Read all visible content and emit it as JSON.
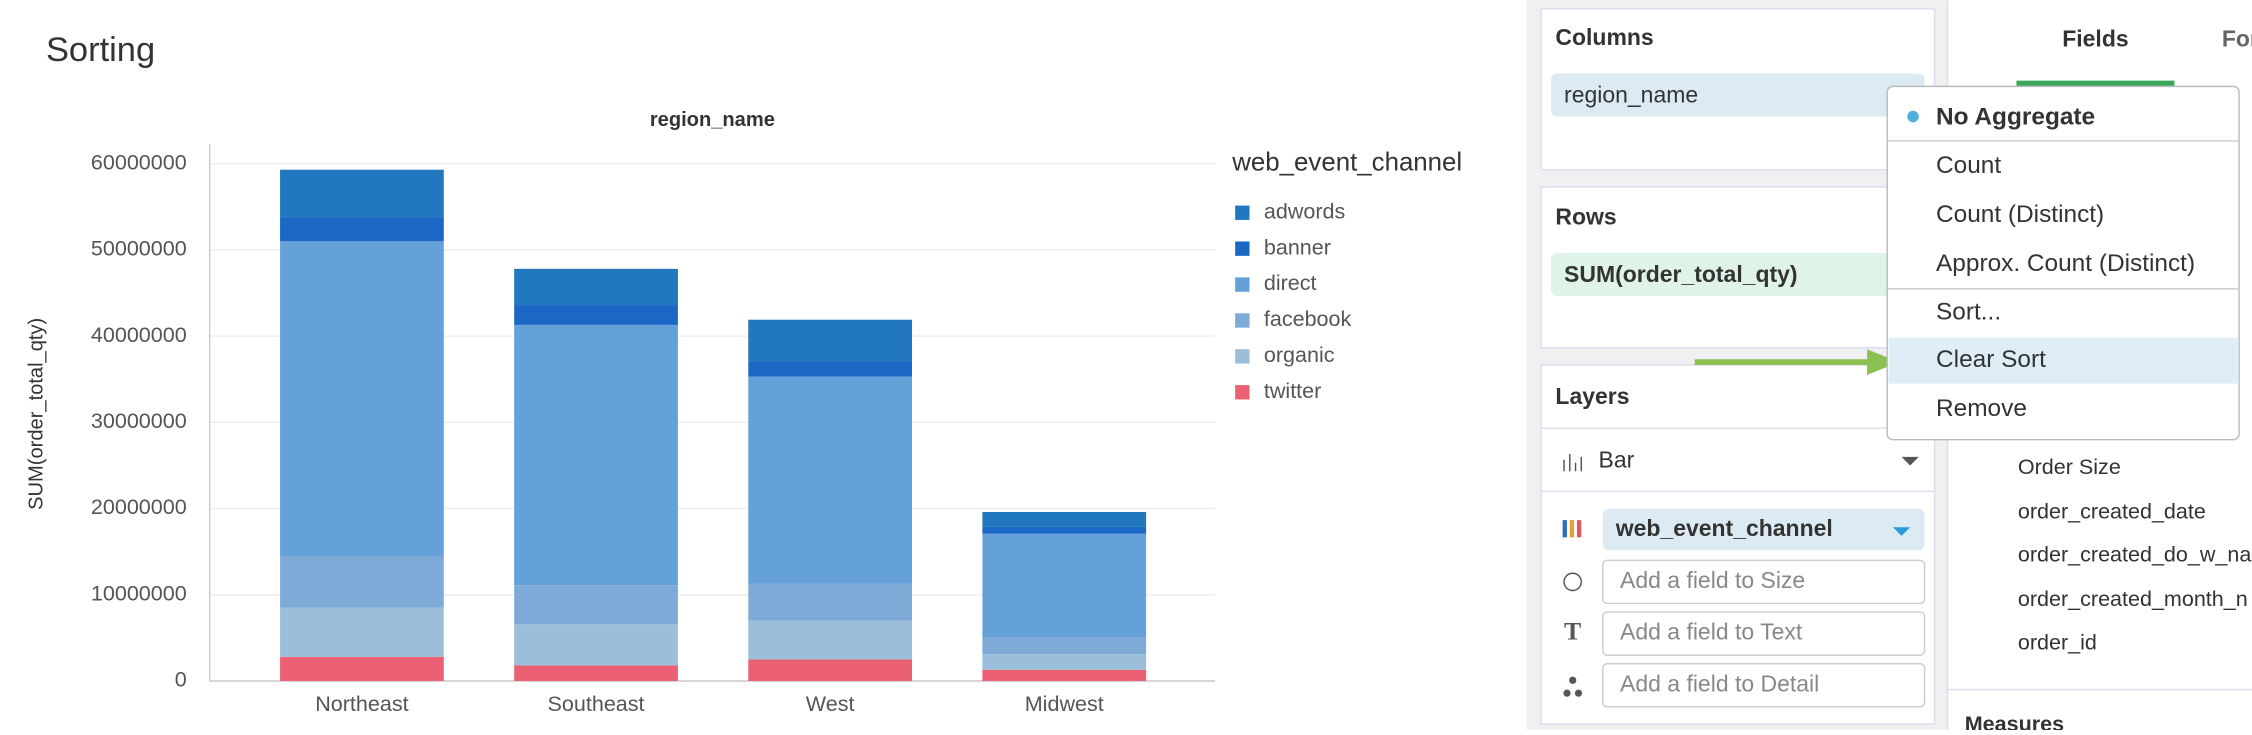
{
  "chart_data": {
    "type": "bar",
    "stacked": true,
    "title": "Sorting",
    "x_label": "region_name",
    "y_label": "SUM(order_total_qty)",
    "legend_title": "web_event_channel",
    "legend": "right",
    "categories": [
      "Northeast",
      "Southeast",
      "West",
      "Midwest"
    ],
    "series": [
      {
        "name": "adwords",
        "color": "#2278be",
        "values": [
          5500000,
          4200000,
          4800000,
          1700000
        ]
      },
      {
        "name": "banner",
        "color": "#1b67c6",
        "values": [
          2800000,
          2300000,
          1800000,
          800000
        ]
      },
      {
        "name": "direct",
        "color": "#65a1d9",
        "values": [
          36500000,
          30200000,
          24000000,
          12000000
        ]
      },
      {
        "name": "facebook",
        "color": "#7eaad7",
        "values": [
          6000000,
          4500000,
          4300000,
          2000000
        ]
      },
      {
        "name": "organic",
        "color": "#9bbfda",
        "values": [
          5700000,
          4800000,
          4500000,
          1800000
        ]
      },
      {
        "name": "twitter",
        "color": "#ec6074",
        "values": [
          2800000,
          1800000,
          2500000,
          1300000
        ]
      }
    ],
    "ylim": [
      0,
      62300000
    ],
    "yticks": [
      0,
      10000000,
      20000000,
      30000000,
      40000000,
      50000000,
      60000000
    ],
    "grid": true
  },
  "shelves": {
    "columns": {
      "title": "Columns",
      "field": "region_name"
    },
    "rows": {
      "title": "Rows",
      "field": "SUM(order_total_qty)"
    }
  },
  "layers": {
    "title": "Layers",
    "mark": "Bar",
    "color_field": "web_event_channel",
    "placeholders": [
      "Add a field to Size",
      "Add a field to Text",
      "Add a field to Detail"
    ]
  },
  "tabs": [
    "Fields",
    "Format"
  ],
  "fields": [
    "Order Size",
    "order_created_date",
    "order_created_do_w_na",
    "order_created_month_n",
    "order_id"
  ],
  "measures_title": "Measures",
  "menu": [
    "No Aggregate",
    "Count",
    "Count (Distinct)",
    "Approx. Count (Distinct)",
    "Sort...",
    "Clear Sort",
    "Remove"
  ]
}
